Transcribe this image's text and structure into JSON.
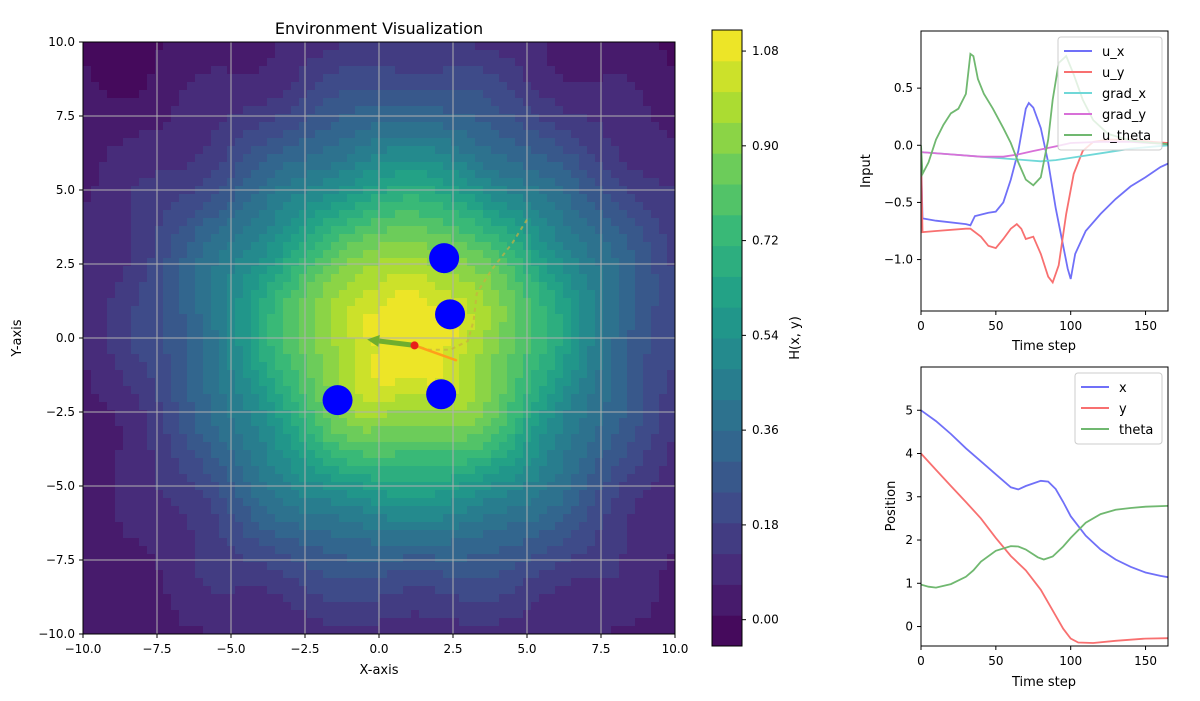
{
  "chart_data": [
    {
      "type": "heatmap",
      "title": "Environment Visualization",
      "xlabel": "X-axis",
      "ylabel": "Y-axis",
      "xlim": [
        -10,
        10
      ],
      "ylim": [
        -10,
        10
      ],
      "grid": true,
      "xticks": [
        "−10.0",
        "−7.5",
        "−5.0",
        "−2.5",
        "0.0",
        "2.5",
        "5.0",
        "7.5",
        "10.0"
      ],
      "yticks": [
        "−10.0",
        "−7.5",
        "−5.0",
        "−2.5",
        "0.0",
        "2.5",
        "5.0",
        "7.5",
        "10.0"
      ],
      "field_peak": [
        1.0,
        0.0
      ],
      "colormap": "viridis",
      "obstacles": [
        {
          "x": 2.2,
          "y": 2.7
        },
        {
          "x": 2.4,
          "y": 0.8
        },
        {
          "x": -1.4,
          "y": -2.1
        },
        {
          "x": 2.1,
          "y": -1.9
        }
      ],
      "robot": {
        "x": 1.2,
        "y": -0.25
      },
      "heading_arrow": {
        "dx": -1.6,
        "dy": 0.2,
        "color": "#6fae2e"
      },
      "gradient_arrow": {
        "dx": 1.4,
        "dy": -0.5,
        "color": "#ff9f1a"
      },
      "trajectory": [
        [
          5.0,
          4.0
        ],
        [
          4.5,
          3.2
        ],
        [
          3.8,
          2.3
        ],
        [
          3.3,
          1.5
        ],
        [
          3.2,
          0.6
        ],
        [
          3.0,
          -0.1
        ],
        [
          2.4,
          -0.4
        ],
        [
          1.7,
          -0.4
        ],
        [
          1.2,
          -0.25
        ]
      ],
      "colorbar": {
        "label": "H(x, y)",
        "min": -0.05,
        "max": 1.12,
        "ticks": [
          "0.00",
          "0.18",
          "0.36",
          "0.54",
          "0.72",
          "0.90",
          "1.08"
        ],
        "tick_values": [
          0.0,
          0.18,
          0.36,
          0.54,
          0.72,
          0.9,
          1.08
        ],
        "levels": 20
      }
    },
    {
      "type": "line",
      "xlabel": "Time step",
      "ylabel": "Input",
      "xlim": [
        0,
        165
      ],
      "ylim": [
        -1.45,
        1.0
      ],
      "xticks": [
        0,
        50,
        100,
        150
      ],
      "yticks": [
        -1.0,
        -0.5,
        0.0,
        0.5
      ],
      "legend_position": "top-right",
      "series": [
        {
          "name": "u_x",
          "color": "#7070f8",
          "points": [
            [
              0,
              -0.06
            ],
            [
              1,
              -0.64
            ],
            [
              10,
              -0.66
            ],
            [
              30,
              -0.69
            ],
            [
              33,
              -0.7
            ],
            [
              36,
              -0.62
            ],
            [
              45,
              -0.59
            ],
            [
              50,
              -0.58
            ],
            [
              55,
              -0.5
            ],
            [
              60,
              -0.3
            ],
            [
              65,
              -0.05
            ],
            [
              70,
              0.32
            ],
            [
              72,
              0.37
            ],
            [
              75,
              0.33
            ],
            [
              80,
              0.15
            ],
            [
              85,
              -0.15
            ],
            [
              90,
              -0.55
            ],
            [
              95,
              -0.88
            ],
            [
              98,
              -1.08
            ],
            [
              100,
              -1.17
            ],
            [
              103,
              -0.95
            ],
            [
              110,
              -0.75
            ],
            [
              120,
              -0.6
            ],
            [
              130,
              -0.47
            ],
            [
              140,
              -0.36
            ],
            [
              150,
              -0.28
            ],
            [
              160,
              -0.19
            ],
            [
              165,
              -0.16
            ]
          ]
        },
        {
          "name": "u_y",
          "color": "#f87070",
          "points": [
            [
              0,
              -0.07
            ],
            [
              1,
              -0.76
            ],
            [
              10,
              -0.75
            ],
            [
              30,
              -0.73
            ],
            [
              33,
              -0.73
            ],
            [
              40,
              -0.8
            ],
            [
              45,
              -0.88
            ],
            [
              50,
              -0.9
            ],
            [
              55,
              -0.82
            ],
            [
              60,
              -0.73
            ],
            [
              64,
              -0.69
            ],
            [
              67,
              -0.73
            ],
            [
              70,
              -0.82
            ],
            [
              75,
              -0.8
            ],
            [
              80,
              -0.95
            ],
            [
              85,
              -1.15
            ],
            [
              88,
              -1.2
            ],
            [
              92,
              -1.05
            ],
            [
              97,
              -0.6
            ],
            [
              102,
              -0.25
            ],
            [
              108,
              -0.05
            ],
            [
              115,
              0.03
            ],
            [
              125,
              0.05
            ],
            [
              140,
              0.05
            ],
            [
              155,
              0.03
            ],
            [
              165,
              0.02
            ]
          ]
        },
        {
          "name": "grad_x",
          "color": "#70d8d8",
          "points": [
            [
              0,
              -0.06
            ],
            [
              20,
              -0.08
            ],
            [
              40,
              -0.1
            ],
            [
              60,
              -0.12
            ],
            [
              80,
              -0.14
            ],
            [
              90,
              -0.13
            ],
            [
              100,
              -0.11
            ],
            [
              120,
              -0.07
            ],
            [
              140,
              -0.03
            ],
            [
              165,
              0.0
            ]
          ]
        },
        {
          "name": "grad_y",
          "color": "#d870d8",
          "points": [
            [
              0,
              -0.06
            ],
            [
              20,
              -0.08
            ],
            [
              40,
              -0.1
            ],
            [
              55,
              -0.1
            ],
            [
              65,
              -0.08
            ],
            [
              75,
              -0.05
            ],
            [
              90,
              -0.01
            ],
            [
              100,
              0.02
            ],
            [
              120,
              0.03
            ],
            [
              140,
              0.03
            ],
            [
              165,
              0.01
            ]
          ]
        },
        {
          "name": "u_theta",
          "color": "#70b870",
          "points": [
            [
              0,
              0.0
            ],
            [
              1,
              -0.25
            ],
            [
              5,
              -0.15
            ],
            [
              10,
              0.05
            ],
            [
              15,
              0.18
            ],
            [
              20,
              0.28
            ],
            [
              25,
              0.32
            ],
            [
              30,
              0.45
            ],
            [
              33,
              0.8
            ],
            [
              35,
              0.78
            ],
            [
              38,
              0.58
            ],
            [
              42,
              0.45
            ],
            [
              48,
              0.32
            ],
            [
              55,
              0.15
            ],
            [
              60,
              0.02
            ],
            [
              65,
              -0.15
            ],
            [
              70,
              -0.3
            ],
            [
              75,
              -0.35
            ],
            [
              80,
              -0.28
            ],
            [
              85,
              0.05
            ],
            [
              88,
              0.4
            ],
            [
              92,
              0.72
            ],
            [
              97,
              0.78
            ],
            [
              102,
              0.62
            ],
            [
              108,
              0.4
            ],
            [
              115,
              0.22
            ],
            [
              125,
              0.1
            ],
            [
              140,
              0.04
            ],
            [
              155,
              0.02
            ],
            [
              165,
              0.01
            ]
          ]
        }
      ]
    },
    {
      "type": "line",
      "xlabel": "Time step",
      "ylabel": "Position",
      "xlim": [
        0,
        165
      ],
      "ylim": [
        -0.45,
        6.0
      ],
      "xticks": [
        0,
        50,
        100,
        150
      ],
      "yticks": [
        0,
        1,
        2,
        3,
        4,
        5
      ],
      "legend_position": "top-right",
      "series": [
        {
          "name": "x",
          "color": "#7070f8",
          "points": [
            [
              0,
              5.0
            ],
            [
              10,
              4.75
            ],
            [
              20,
              4.45
            ],
            [
              30,
              4.12
            ],
            [
              40,
              3.82
            ],
            [
              50,
              3.52
            ],
            [
              60,
              3.22
            ],
            [
              65,
              3.17
            ],
            [
              70,
              3.25
            ],
            [
              80,
              3.37
            ],
            [
              85,
              3.35
            ],
            [
              90,
              3.18
            ],
            [
              95,
              2.88
            ],
            [
              100,
              2.55
            ],
            [
              110,
              2.1
            ],
            [
              120,
              1.78
            ],
            [
              130,
              1.55
            ],
            [
              140,
              1.38
            ],
            [
              150,
              1.25
            ],
            [
              160,
              1.17
            ],
            [
              165,
              1.14
            ]
          ]
        },
        {
          "name": "y",
          "color": "#f87070",
          "points": [
            [
              0,
              4.0
            ],
            [
              10,
              3.62
            ],
            [
              20,
              3.25
            ],
            [
              30,
              2.88
            ],
            [
              40,
              2.5
            ],
            [
              50,
              2.05
            ],
            [
              60,
              1.63
            ],
            [
              70,
              1.3
            ],
            [
              80,
              0.85
            ],
            [
              90,
              0.25
            ],
            [
              95,
              -0.05
            ],
            [
              100,
              -0.28
            ],
            [
              105,
              -0.37
            ],
            [
              115,
              -0.38
            ],
            [
              130,
              -0.33
            ],
            [
              150,
              -0.28
            ],
            [
              165,
              -0.27
            ]
          ]
        },
        {
          "name": "theta",
          "color": "#70b870",
          "points": [
            [
              0,
              0.97
            ],
            [
              5,
              0.92
            ],
            [
              10,
              0.9
            ],
            [
              20,
              0.98
            ],
            [
              30,
              1.15
            ],
            [
              35,
              1.3
            ],
            [
              40,
              1.5
            ],
            [
              50,
              1.75
            ],
            [
              60,
              1.86
            ],
            [
              65,
              1.85
            ],
            [
              70,
              1.78
            ],
            [
              78,
              1.6
            ],
            [
              82,
              1.55
            ],
            [
              88,
              1.62
            ],
            [
              95,
              1.85
            ],
            [
              100,
              2.05
            ],
            [
              110,
              2.4
            ],
            [
              120,
              2.6
            ],
            [
              130,
              2.7
            ],
            [
              140,
              2.74
            ],
            [
              150,
              2.77
            ],
            [
              165,
              2.79
            ]
          ]
        }
      ]
    }
  ]
}
